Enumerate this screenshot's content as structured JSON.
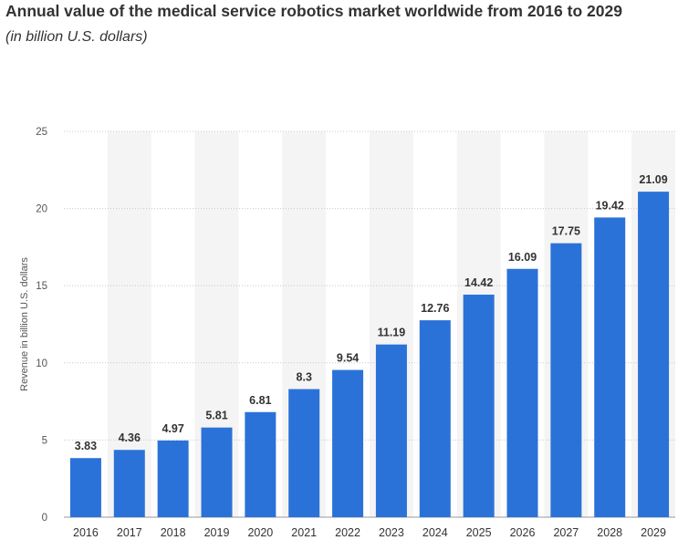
{
  "chart_data": {
    "type": "bar",
    "title": "Annual value of the medical service robotics market worldwide from 2016 to 2029",
    "subtitle": "(in billion U.S. dollars)",
    "xlabel": "",
    "ylabel": "Revenue in billion U.S. dollars",
    "categories": [
      "2016",
      "2017",
      "2018",
      "2019",
      "2020",
      "2021",
      "2022",
      "2023",
      "2024",
      "2025",
      "2026",
      "2027",
      "2028",
      "2029"
    ],
    "values": [
      3.83,
      4.36,
      4.97,
      5.81,
      6.81,
      8.3,
      9.54,
      11.19,
      12.76,
      14.42,
      16.09,
      17.75,
      19.42,
      21.09
    ],
    "data_labels": [
      "3.83",
      "4.36",
      "4.97",
      "5.81",
      "6.81",
      "8.3",
      "9.54",
      "11.19",
      "12.76",
      "14.42",
      "16.09",
      "17.75",
      "19.42",
      "21.09"
    ],
    "ylim": [
      0,
      25
    ],
    "yticks": [
      0,
      5,
      10,
      15,
      20,
      25
    ],
    "ytick_labels": [
      "0",
      "5",
      "10",
      "15",
      "20",
      "25"
    ],
    "grid": true,
    "legend": "none",
    "bar_color": "#2b72d8",
    "band_color": "#f4f4f4",
    "grid_color": "#c8c8c8"
  }
}
